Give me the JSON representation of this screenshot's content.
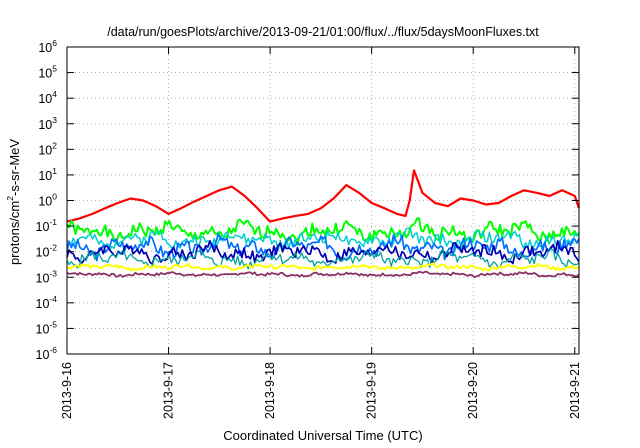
{
  "chart_data": {
    "type": "line",
    "title": "/data/run/goesPlots/archive/2013-09-21/01:00/flux/../flux/5daysMoonFluxes.txt",
    "xlabel": "Coordinated Universal Time (UTC)",
    "ylabel": {
      "base": "protons/cm",
      "sup": "2",
      "rest": "-s-sr-MeV"
    },
    "y_scale": "log",
    "ylim": [
      1e-06,
      1000000.0
    ],
    "yticks": [
      {
        "exp": "-6"
      },
      {
        "exp": "-5"
      },
      {
        "exp": "-4"
      },
      {
        "exp": "-3"
      },
      {
        "exp": "-2"
      },
      {
        "exp": "-1"
      },
      {
        "exp": "0"
      },
      {
        "exp": "1"
      },
      {
        "exp": "2"
      },
      {
        "exp": "3"
      },
      {
        "exp": "4"
      },
      {
        "exp": "5"
      },
      {
        "exp": "6"
      }
    ],
    "ytick_base": "10",
    "xlim": [
      "2013-09-16T00:00",
      "2013-09-21T01:00"
    ],
    "xticks": [
      "2013-9-16",
      "2013-9-17",
      "2013-9-18",
      "2013-9-19",
      "2013-9-20",
      "2013-9-21"
    ],
    "grid": true,
    "series": [
      {
        "color": "#ff0000",
        "width": 2.2,
        "x": [
          "2013-09-16T00:00",
          "2013-09-16T03:00",
          "2013-09-16T06:00",
          "2013-09-16T09:00",
          "2013-09-16T12:00",
          "2013-09-16T15:00",
          "2013-09-16T18:00",
          "2013-09-16T21:00",
          "2013-09-17T00:00",
          "2013-09-17T03:00",
          "2013-09-17T06:00",
          "2013-09-17T09:00",
          "2013-09-17T12:00",
          "2013-09-17T15:00",
          "2013-09-17T18:00",
          "2013-09-17T21:00",
          "2013-09-18T00:00",
          "2013-09-18T03:00",
          "2013-09-18T06:00",
          "2013-09-18T09:00",
          "2013-09-18T12:00",
          "2013-09-18T15:00",
          "2013-09-18T18:00",
          "2013-09-18T21:00",
          "2013-09-19T00:00",
          "2013-09-19T03:00",
          "2013-09-19T06:00",
          "2013-09-19T08:00",
          "2013-09-19T09:00",
          "2013-09-19T10:00",
          "2013-09-19T12:00",
          "2013-09-19T15:00",
          "2013-09-19T18:00",
          "2013-09-19T21:00",
          "2013-09-20T00:00",
          "2013-09-20T03:00",
          "2013-09-20T06:00",
          "2013-09-20T09:00",
          "2013-09-20T12:00",
          "2013-09-20T15:00",
          "2013-09-20T18:00",
          "2013-09-20T21:00",
          "2013-09-21T00:00",
          "2013-09-21T01:00"
        ],
        "y": [
          0.15,
          0.2,
          0.3,
          0.5,
          0.8,
          1.2,
          1.0,
          0.6,
          0.3,
          0.5,
          0.9,
          1.5,
          2.5,
          3.5,
          1.5,
          0.5,
          0.15,
          0.2,
          0.25,
          0.3,
          0.5,
          1.2,
          4.0,
          2.0,
          0.8,
          0.5,
          0.3,
          0.25,
          1.0,
          15.0,
          2.0,
          0.8,
          0.6,
          1.2,
          1.0,
          0.7,
          0.8,
          1.5,
          2.5,
          2.0,
          1.5,
          2.5,
          1.5,
          0.5
        ]
      },
      {
        "color": "#00ff00",
        "width": 2.0,
        "base": 0.06,
        "amp": 0.55,
        "seed": 1
      },
      {
        "color": "#00cfcf",
        "width": 1.5,
        "base": 0.03,
        "amp": 0.5,
        "seed": 2
      },
      {
        "color": "#0070ff",
        "width": 1.7,
        "base": 0.015,
        "amp": 0.55,
        "seed": 3
      },
      {
        "color": "#0000b0",
        "width": 1.7,
        "base": 0.009,
        "amp": 0.5,
        "seed": 4
      },
      {
        "color": "#00a0a0",
        "width": 1.3,
        "base": 0.005,
        "amp": 0.45,
        "seed": 5
      },
      {
        "color": "#ffff00",
        "width": 2.0,
        "base": 0.0025,
        "amp": 0.15,
        "seed": 6
      },
      {
        "color": "#883366",
        "width": 1.8,
        "base": 0.0013,
        "amp": 0.12,
        "seed": 7
      }
    ]
  }
}
